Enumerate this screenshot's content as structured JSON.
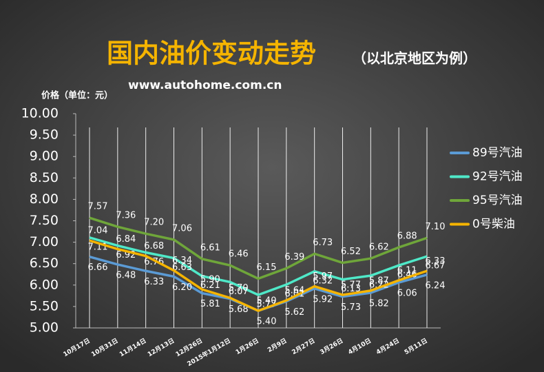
{
  "chart_data": {
    "type": "line",
    "title": "国内油价变动走势",
    "subtitle": "（以北京地区为例）",
    "source": "www.autohome.com.cn",
    "y_label": "价格（单位：元）",
    "categories": [
      "10月17日",
      "10月31日",
      "11月14日",
      "12月13日",
      "12月26日",
      "2015年1月12日",
      "1月26日",
      "2月9日",
      "2月27日",
      "3月26日",
      "4月10日",
      "4月24日",
      "5月11日"
    ],
    "series": [
      {
        "name": "89号汽油",
        "color": "#5b9bd5",
        "values": [
          6.66,
          6.48,
          6.33,
          6.2,
          5.81,
          5.68,
          5.4,
          5.62,
          5.92,
          5.73,
          5.82,
          6.06,
          6.24
        ],
        "value_labels": [
          "6.66",
          "6.48",
          "6.33",
          "6.20",
          "5.81",
          "5.68",
          "5.40",
          "5.62",
          "5.92",
          "5.73",
          "5.82",
          "6.06",
          "6.24"
        ]
      },
      {
        "name": "92号汽油",
        "color": "#4fe8c8",
        "values": [
          7.11,
          6.92,
          6.76,
          6.63,
          6.21,
          6.07,
          5.77,
          6.01,
          6.32,
          6.13,
          6.22,
          6.46,
          6.67
        ],
        "value_labels": [
          "7.11",
          "6.92",
          "6.76",
          "6.63",
          "6.21",
          "6.07",
          "5.77",
          "6.01",
          "6.32",
          "6.13",
          "6.22",
          "6.46",
          "6.67"
        ]
      },
      {
        "name": "95号汽油",
        "color": "#6fa63a",
        "values": [
          7.57,
          7.36,
          7.2,
          7.06,
          6.61,
          6.46,
          6.15,
          6.39,
          6.73,
          6.52,
          6.62,
          6.88,
          7.1
        ],
        "value_labels": [
          "7.57",
          "7.36",
          "7.20",
          "7.06",
          "6.61",
          "6.46",
          "6.15",
          "6.39",
          "6.73",
          "6.52",
          "6.62",
          "6.88",
          "7.10"
        ]
      },
      {
        "name": "0号柴油",
        "color": "#f5b400",
        "values": [
          7.04,
          6.84,
          6.68,
          6.34,
          5.9,
          5.7,
          5.4,
          5.64,
          5.97,
          5.77,
          5.87,
          6.11,
          6.33
        ],
        "value_labels": [
          "7.04",
          "6.84",
          "6.68",
          "6.34",
          "5.90",
          "5.70",
          "5.40",
          "5.64",
          "5.97",
          "5.77",
          "5.87",
          "6.11",
          "6.33"
        ]
      }
    ],
    "ylim": [
      5,
      10
    ],
    "yticks": [
      {
        "value": 5,
        "label": "5.00"
      },
      {
        "value": 5.5,
        "label": "5.50"
      },
      {
        "value": 6,
        "label": "6.00"
      },
      {
        "value": 6.5,
        "label": "6.50"
      },
      {
        "value": 7,
        "label": "7.00"
      },
      {
        "value": 7.5,
        "label": "7.50"
      },
      {
        "value": 8,
        "label": "8.00"
      },
      {
        "value": 8.5,
        "label": "8.50"
      },
      {
        "value": 9,
        "label": "9.00"
      },
      {
        "value": 9.5,
        "label": "9.50"
      },
      {
        "value": 10,
        "label": "10.00"
      }
    ],
    "legend": "right"
  }
}
